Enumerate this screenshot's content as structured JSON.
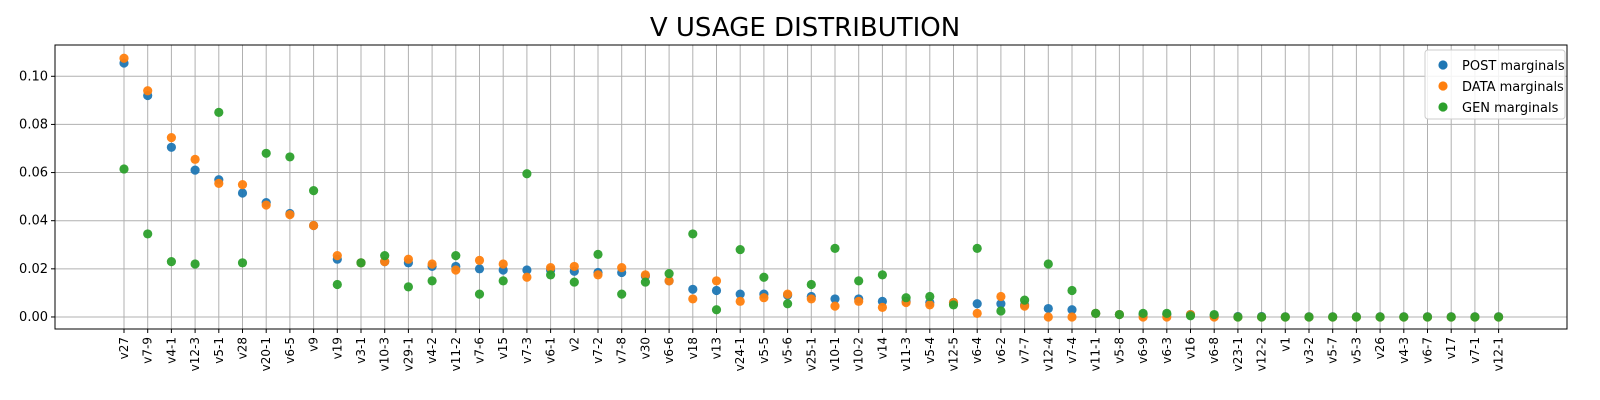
{
  "chart_data": {
    "type": "scatter",
    "title": "V USAGE DISTRIBUTION",
    "xlabel": "",
    "ylabel": "",
    "ylim": [
      -0.005,
      0.113
    ],
    "yticks": [
      0.0,
      0.02,
      0.04,
      0.06,
      0.08,
      0.1
    ],
    "ytick_labels": [
      "0.00",
      "0.02",
      "0.04",
      "0.06",
      "0.08",
      "0.10"
    ],
    "grid": true,
    "legend_position": "top-right",
    "categories": [
      "v27",
      "v7-9",
      "v4-1",
      "v12-3",
      "v5-1",
      "v28",
      "v20-1",
      "v6-5",
      "v9",
      "v19",
      "v3-1",
      "v10-3",
      "v29-1",
      "v4-2",
      "v11-2",
      "v7-6",
      "v15",
      "v7-3",
      "v6-1",
      "v2",
      "v7-2",
      "v7-8",
      "v30",
      "v6-6",
      "v18",
      "v13",
      "v24-1",
      "v5-5",
      "v5-6",
      "v25-1",
      "v10-1",
      "v10-2",
      "v14",
      "v11-3",
      "v5-4",
      "v12-5",
      "v6-4",
      "v6-2",
      "v7-7",
      "v12-4",
      "v7-4",
      "v11-1",
      "v5-8",
      "v6-9",
      "v6-3",
      "v16",
      "v6-8",
      "v23-1",
      "v12-2",
      "v1",
      "v3-2",
      "v5-7",
      "v5-3",
      "v26",
      "v4-3",
      "v6-7",
      "v17",
      "v7-1",
      "v12-1"
    ],
    "series": [
      {
        "name": "POST marginals",
        "color": "#1f77b4",
        "values": [
          0.1055,
          0.092,
          0.0705,
          0.061,
          0.057,
          0.0515,
          0.0475,
          0.043,
          0.038,
          0.024,
          0.0225,
          0.023,
          0.0225,
          0.021,
          0.021,
          0.02,
          0.0195,
          0.0195,
          0.0195,
          0.019,
          0.0185,
          0.0185,
          0.017,
          0.015,
          0.0115,
          0.011,
          0.0095,
          0.0095,
          0.009,
          0.0085,
          0.0075,
          0.0075,
          0.0065,
          0.0065,
          0.006,
          0.006,
          0.0055,
          0.0055,
          0.005,
          0.0035,
          0.003,
          0.0015,
          0.001,
          0.001,
          0.001,
          0.001,
          0.0005,
          0.0002,
          0.0002,
          0.0001,
          0.0001,
          0.0001,
          0.0001,
          0.0001,
          0.0001,
          0.0001,
          0.0001,
          0.0001,
          0.0001
        ]
      },
      {
        "name": "DATA marginals",
        "color": "#ff7f0e",
        "values": [
          0.1075,
          0.094,
          0.0745,
          0.0655,
          0.0555,
          0.055,
          0.0465,
          0.0425,
          0.038,
          0.0255,
          0.0225,
          0.023,
          0.024,
          0.022,
          0.0195,
          0.0235,
          0.022,
          0.0165,
          0.0205,
          0.021,
          0.0175,
          0.0205,
          0.0175,
          0.015,
          0.0075,
          0.015,
          0.0065,
          0.008,
          0.0095,
          0.0075,
          0.0045,
          0.0065,
          0.004,
          0.006,
          0.005,
          0.006,
          0.0015,
          0.0085,
          0.0045,
          0.0,
          0.0,
          0.0015,
          0.001,
          0.0,
          0.0,
          0.001,
          0.0,
          0.0,
          0.0,
          0.0,
          0.0,
          0.0,
          0.0,
          0.0,
          0.0,
          0.0,
          0.0,
          0.0,
          0.0
        ]
      },
      {
        "name": "GEN marginals",
        "color": "#2ca02c",
        "values": [
          0.0615,
          0.0345,
          0.023,
          0.022,
          0.085,
          0.0225,
          0.068,
          0.0665,
          0.0525,
          0.0135,
          0.0225,
          0.0255,
          0.0125,
          0.015,
          0.0255,
          0.0095,
          0.015,
          0.0595,
          0.0175,
          0.0145,
          0.026,
          0.0095,
          0.0145,
          0.018,
          0.0345,
          0.003,
          0.028,
          0.0165,
          0.0055,
          0.0135,
          0.0285,
          0.015,
          0.0175,
          0.008,
          0.0085,
          0.005,
          0.0285,
          0.0025,
          0.007,
          0.022,
          0.011,
          0.0015,
          0.001,
          0.0015,
          0.0015,
          0.0005,
          0.001,
          0.0,
          0.0,
          0.0,
          0.0,
          0.0,
          0.0,
          0.0,
          0.0,
          0.0,
          0.0,
          0.0,
          0.0
        ]
      }
    ]
  }
}
